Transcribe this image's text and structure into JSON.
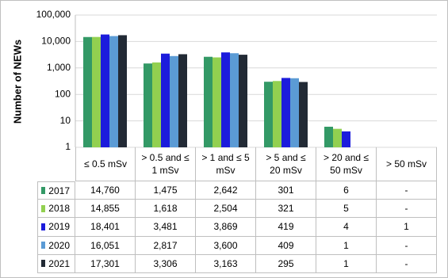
{
  "chart_data": {
    "type": "bar",
    "y_label": "Number of NEWs",
    "log": true,
    "grid": true,
    "ylim": [
      1,
      100000
    ],
    "yticks": [
      1,
      10,
      100,
      {
        "value": 1000,
        "label": "1,000"
      },
      {
        "value": 10000,
        "label": "10,000"
      },
      {
        "value": 100000,
        "label": "100,000"
      }
    ],
    "categories": [
      "≤ 0.5 mSv",
      "> 0.5 and ≤ 1 mSv",
      "> 1 and ≤ 5 mSv",
      "> 5 and ≤ 20 mSv",
      "> 20 and ≤ 50 mSv",
      "> 50 mSv"
    ],
    "series": [
      {
        "name": "2017",
        "color": "#339966",
        "values": [
          14760,
          1475,
          2642,
          301,
          6,
          null
        ],
        "value_labels": [
          "14,760",
          "1,475",
          "2,642",
          "301",
          "6",
          "-"
        ]
      },
      {
        "name": "2018",
        "color": "#92d050",
        "values": [
          14855,
          1618,
          2504,
          321,
          5,
          null
        ],
        "value_labels": [
          "14,855",
          "1,618",
          "2,504",
          "321",
          "5",
          "-"
        ]
      },
      {
        "name": "2019",
        "color": "#1c1cdc",
        "values": [
          18401,
          3481,
          3869,
          419,
          4,
          1
        ],
        "value_labels": [
          "18,401",
          "3,481",
          "3,869",
          "419",
          "4",
          "1"
        ]
      },
      {
        "name": "2020",
        "color": "#5b9bd5",
        "values": [
          16051,
          2817,
          3600,
          409,
          1,
          null
        ],
        "value_labels": [
          "16,051",
          "2,817",
          "3,600",
          "409",
          "1",
          "-"
        ]
      },
      {
        "name": "2021",
        "color": "#222a35",
        "values": [
          17301,
          3306,
          3163,
          295,
          1,
          null
        ],
        "value_labels": [
          "17,301",
          "3,306",
          "3,163",
          "295",
          "1",
          "-"
        ]
      }
    ]
  }
}
